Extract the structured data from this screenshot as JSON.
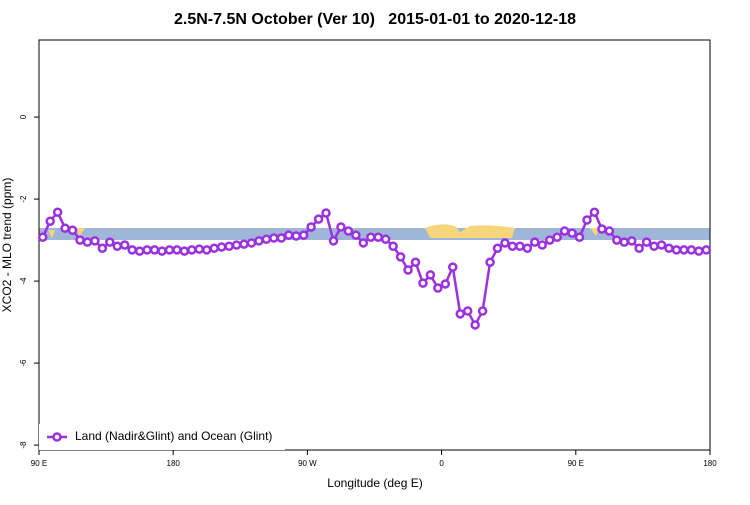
{
  "chart_data": {
    "type": "line",
    "title": "2.5N-7.5N October (Ver 10)   2015-01-01 to 2020-12-18",
    "xlabel": "Longitude (deg E)",
    "ylabel": "XCO2 - MLO trend (ppm)",
    "x": [
      92.5,
      97.5,
      102.5,
      107.5,
      112.5,
      117.5,
      122.5,
      127.5,
      132.5,
      137.5,
      142.5,
      147.5,
      152.5,
      157.5,
      162.5,
      167.5,
      172.5,
      177.5,
      182.5,
      187.5,
      192.5,
      197.5,
      202.5,
      207.5,
      212.5,
      217.5,
      222.5,
      227.5,
      232.5,
      237.5,
      242.5,
      247.5,
      252.5,
      257.5,
      262.5,
      267.5,
      272.5,
      277.5,
      282.5,
      287.5,
      292.5,
      297.5,
      302.5,
      307.5,
      312.5,
      317.5,
      322.5,
      327.5,
      332.5,
      337.5,
      342.5,
      347.5,
      352.5,
      357.5,
      362.5,
      367.5,
      372.5,
      377.5,
      382.5,
      387.5,
      392.5,
      397.5,
      402.5,
      407.5,
      412.5,
      417.5,
      422.5,
      427.5,
      432.5,
      437.5,
      442.5,
      447.5,
      452.5,
      457.5,
      462.5,
      467.5,
      472.5,
      477.5,
      482.5,
      487.5,
      492.5,
      497.5,
      502.5,
      507.5,
      512.5,
      517.5,
      522.5,
      527.5,
      532.5,
      537.5
    ],
    "series": [
      {
        "name": "Land (Nadir&Glint) and Ocean (Glint)",
        "color": "#9b30e0",
        "values": [
          -2.93,
          -2.54,
          -2.32,
          -2.71,
          -2.76,
          -3.0,
          -3.05,
          -3.02,
          -3.2,
          -3.05,
          -3.15,
          -3.12,
          -3.24,
          -3.27,
          -3.24,
          -3.24,
          -3.27,
          -3.24,
          -3.24,
          -3.27,
          -3.24,
          -3.22,
          -3.24,
          -3.2,
          -3.17,
          -3.15,
          -3.12,
          -3.1,
          -3.07,
          -3.02,
          -2.98,
          -2.95,
          -2.95,
          -2.88,
          -2.9,
          -2.88,
          -2.68,
          -2.49,
          -2.34,
          -3.02,
          -2.68,
          -2.78,
          -2.88,
          -3.07,
          -2.93,
          -2.93,
          -2.98,
          -3.15,
          -3.41,
          -3.73,
          -3.54,
          -4.05,
          -3.85,
          -4.17,
          -4.07,
          -3.66,
          -4.8,
          -4.73,
          -5.07,
          -4.73,
          -3.54,
          -3.2,
          -3.07,
          -3.15,
          -3.15,
          -3.2,
          -3.05,
          -3.12,
          -3.0,
          -2.93,
          -2.78,
          -2.83,
          -2.93,
          -2.51,
          -2.32,
          -2.73,
          -2.78,
          -3.0,
          -3.05,
          -3.02,
          -3.2,
          -3.05,
          -3.15,
          -3.12,
          -3.2,
          -3.24,
          -3.24,
          -3.24,
          -3.27,
          -3.24
        ]
      }
    ],
    "xlim": [
      90,
      540
    ],
    "xticks": [
      {
        "value": 90,
        "label": "90 E"
      },
      180,
      {
        "value": 270,
        "label": "90 W"
      },
      {
        "value": 360,
        "label": "0"
      },
      {
        "value": 450,
        "label": "90 E"
      },
      {
        "value": 540,
        "label": "180"
      }
    ],
    "ylim": [
      -8.12,
      1.88
    ],
    "yticks": [
      0,
      -2,
      -4,
      -6,
      -8
    ],
    "legend": "bottom-left"
  }
}
